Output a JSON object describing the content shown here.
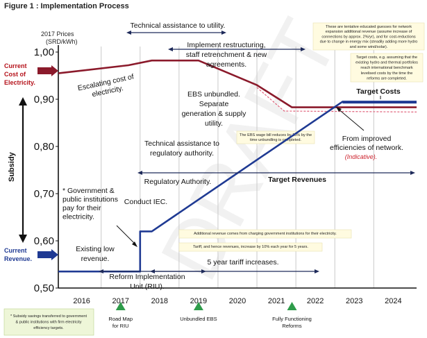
{
  "figure_title": "Figure 1 : Implementation Process",
  "watermark": "DRAFT",
  "colors": {
    "cost": "#8b1a2b",
    "revenue": "#1f3a93",
    "dashed_red": "#e0607a",
    "green_box": "#eef6d8",
    "milestone_green": "#2e9c4a",
    "box_yellow": "#fffbe0"
  },
  "chart_data": {
    "type": "line",
    "title": "",
    "ylabel": "Subsidy",
    "yunit_line1": "2017 Prices",
    "yunit_line2": "(SRD/kWh)",
    "ylim": [
      0.5,
      1.0
    ],
    "yticks": [
      "1,00",
      "0,90",
      "0,80",
      "0,70",
      "0,60",
      "0,50"
    ],
    "ytick_values": [
      1.0,
      0.9,
      0.8,
      0.7,
      0.6,
      0.5
    ],
    "xlim": [
      2015.4,
      2024.6
    ],
    "xticks": [
      "2016",
      "2017",
      "2018",
      "2019",
      "2020",
      "2021",
      "2022",
      "2023",
      "2024"
    ],
    "xtick_values": [
      2016,
      2017,
      2018,
      2019,
      2020,
      2021,
      2022,
      2023,
      2024
    ],
    "grid": true,
    "series": [
      {
        "name": "cost",
        "x": [
          2015.4,
          2017.2,
          2017.8,
          2019.0,
          2020.5,
          2021.4,
          2024.6
        ],
        "y": [
          0.955,
          0.972,
          0.982,
          0.982,
          0.93,
          0.883,
          0.883
        ]
      },
      {
        "name": "cost_dashed",
        "x": [
          2020.5,
          2021.2,
          2024.6
        ],
        "y": [
          0.925,
          0.875,
          0.873
        ]
      },
      {
        "name": "revenue",
        "x": [
          2015.4,
          2017.5,
          2017.5,
          2017.8,
          2022.7,
          2024.6
        ],
        "y": [
          0.535,
          0.535,
          0.62,
          0.62,
          0.895,
          0.895
        ]
      },
      {
        "name": "target_cost_rev",
        "x": [
          2022.7,
          2024.6
        ],
        "y": [
          0.893,
          0.893
        ]
      }
    ]
  },
  "labels": {
    "current_cost": [
      "Current",
      "Cost of",
      "Electricity."
    ],
    "current_revenue": [
      "Current",
      "Revenue."
    ],
    "subsidy": "Subsidy",
    "technical_assistance_utility": "Technical assistance to utility.",
    "implement_restructuring": [
      "Implement restructuring,",
      "staff retrenchment & new",
      "agreements."
    ],
    "escalating_cost": [
      "Escalating cost of",
      "electricity."
    ],
    "ebs_unbundled": [
      "EBS unbundled.",
      "Separate",
      "generation & supply",
      "utility."
    ],
    "technical_assistance_regulator": [
      "Technical assistance to",
      "regulatory authority."
    ],
    "regulatory_authority": "Regulatory Authority.",
    "target_revenues": "Target Revenues",
    "target_costs": "Target Costs",
    "government": [
      "* Government &",
      "public institutions",
      "pay for their",
      "electricity."
    ],
    "conduct_iec": "Conduct IEC.",
    "existing_low_revenue": [
      "Existing low",
      "revenue."
    ],
    "five_year": "5 year tariff increases.",
    "reform_unit": [
      "Reform Implementation",
      "Unit (RIU)."
    ],
    "improved_efficiencies": [
      "From improved",
      "efficiencies of network."
    ],
    "indicative": "(Indicative).",
    "note_top_right": [
      "These are tentative educated guesses for network",
      "expansion additional revenue (assume increase of",
      "connections by approx. 2%/yr), and for cost-reductions",
      "due to change in energy mix (steadily adding more hydro",
      "and some wind/solar)."
    ],
    "note_target_costs": [
      "Target costs, e.g. assuming that the",
      "existing hydro and thermal portfolios",
      "reach international benchmark",
      "levelised costs by the time the",
      "reforms are completed."
    ],
    "note_ebs_wage": [
      "The EBS wage bill reduces by 15% by the",
      "time unbundling is completed."
    ],
    "note_additional_revenue": "Additional revenue comes from charging government institutions for their electricity.",
    "note_tariff": "Tariff, and hence revenues, increase by 10% each year for 5 years.",
    "note_subsidy_savings": [
      "* Subsidy savings transferred to government",
      "& public institutions with firm electricity",
      "efficiency targets."
    ],
    "milestones": [
      {
        "lines": [
          "Road Map",
          "for RIU"
        ],
        "x": 2017.0
      },
      {
        "lines": [
          "Unbundled EBS"
        ],
        "x": 2019.0
      },
      {
        "lines": [
          "Fully Functioning",
          "Reforms"
        ],
        "x": 2021.4
      }
    ]
  }
}
